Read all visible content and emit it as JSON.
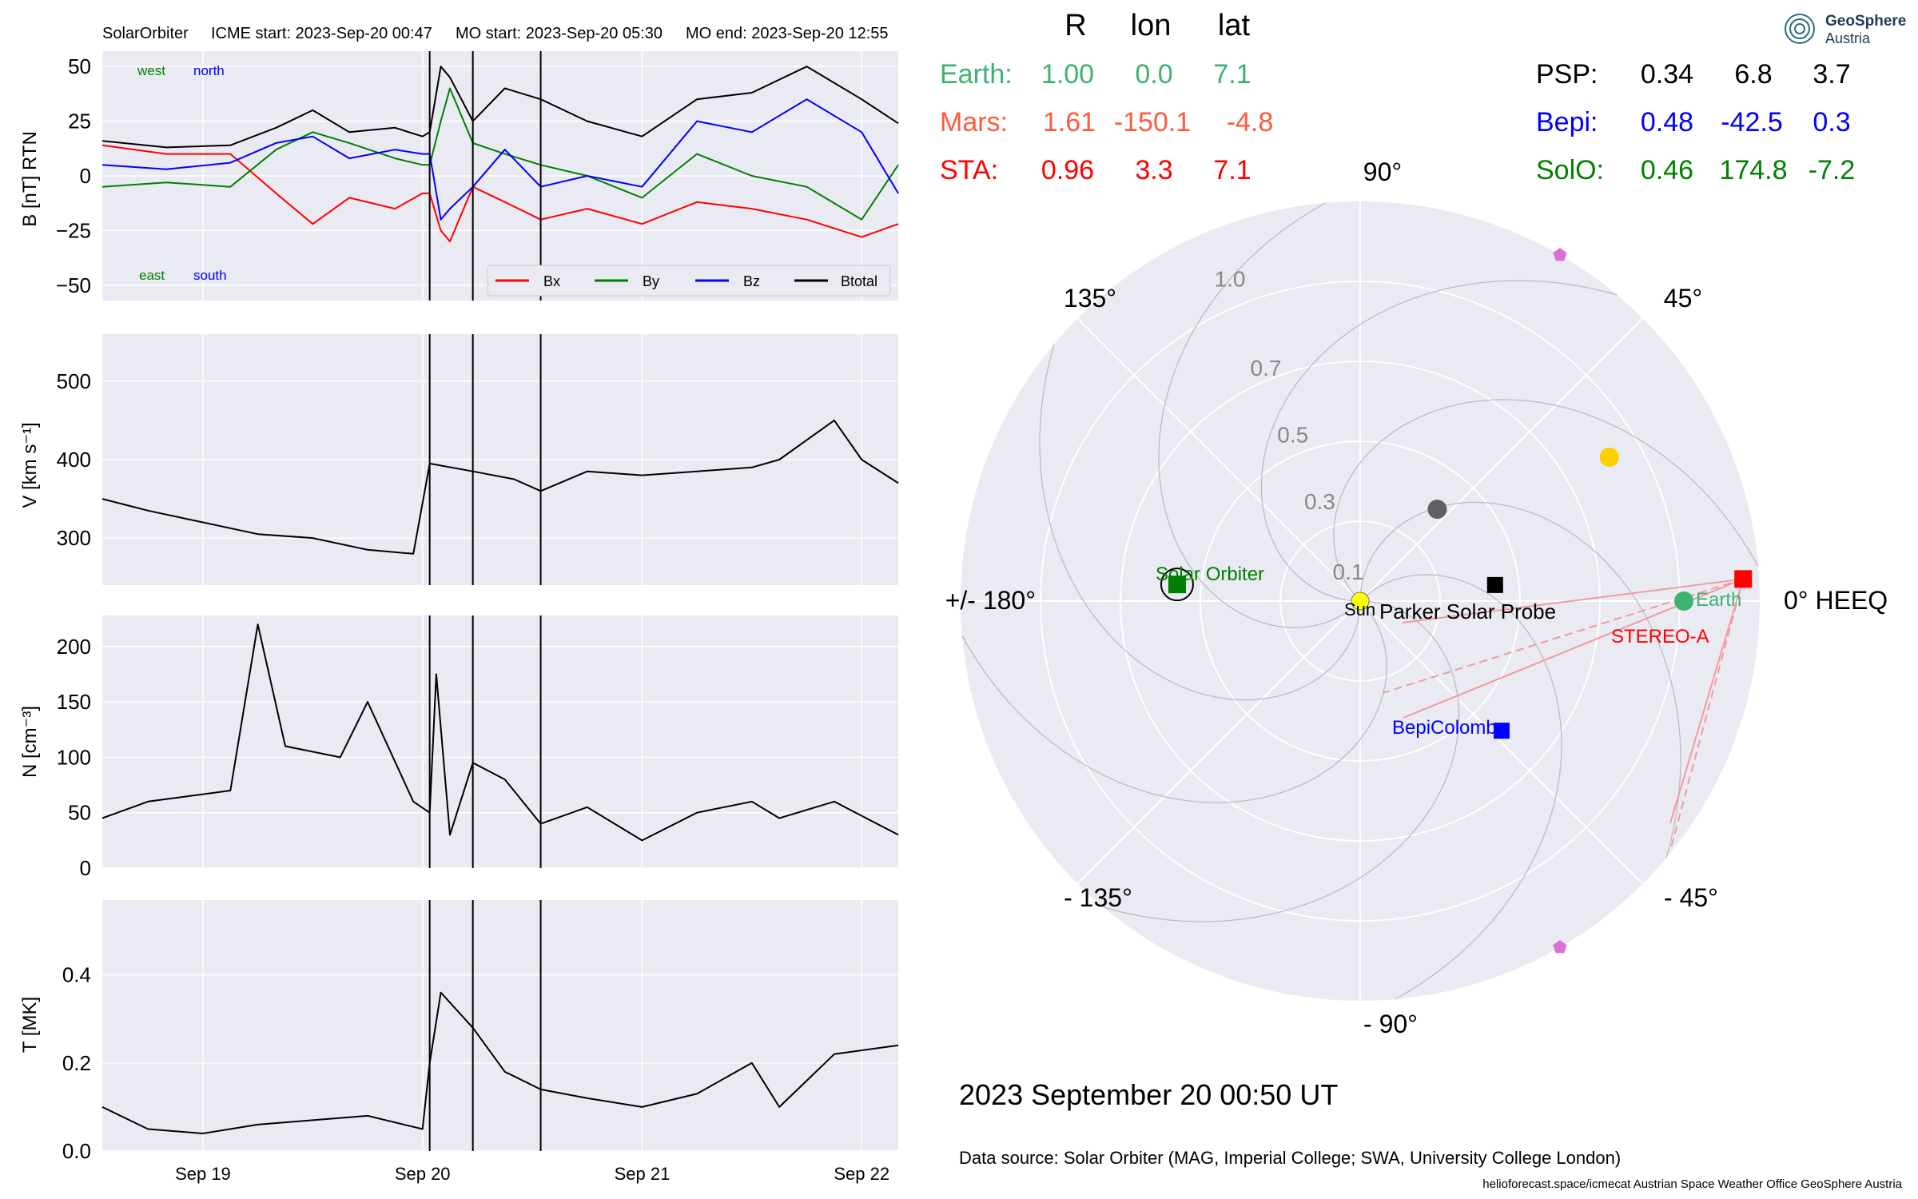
{
  "header": {
    "spacecraft": "SolarOrbiter",
    "icme_start": "ICME start: 2023-Sep-20 00:47",
    "mo_start": "MO start: 2023-Sep-20 05:30",
    "mo_end": "MO end: 2023-Sep-20 12:55"
  },
  "colors": {
    "panel_bg": "#eaeaf2",
    "grid": "#ffffff",
    "bx": "#ff0000",
    "by": "#008000",
    "bz": "#0000ff",
    "btotal": "#000000",
    "earth": "#3cb371",
    "mars": "#ff5a3c",
    "sta": "#ff0000",
    "psp": "#000000",
    "bepi": "#0000ff",
    "solo": "#008000",
    "sun": "#ffff00",
    "mercury": "#606060",
    "venus": "#ffd000",
    "l5l4": "#da70d6"
  },
  "time_axis": {
    "start": "2023-09-18T13:00",
    "end": "2023-09-22T04:00",
    "ticks": [
      {
        "t": "2023-09-19T00:00",
        "label": "Sep 19"
      },
      {
        "t": "2023-09-20T00:00",
        "label": "Sep 20"
      },
      {
        "t": "2023-09-21T00:00",
        "label": "Sep 21"
      },
      {
        "t": "2023-09-22T00:00",
        "label": "Sep 22"
      }
    ],
    "event_lines": [
      "2023-09-20T00:47",
      "2023-09-20T05:30",
      "2023-09-20T12:55"
    ]
  },
  "panels": {
    "b": {
      "ylabel": "B [nT] RTN",
      "ylim": [
        -57,
        57
      ],
      "ticks": [
        50,
        25,
        0,
        -25,
        -50
      ],
      "tick_labels": [
        "50",
        "25",
        "0",
        "−25",
        "−50"
      ],
      "dir_labels": {
        "west": "west",
        "north": "north",
        "east": "east",
        "south": "south"
      },
      "legend": [
        "Bx",
        "By",
        "Bz",
        "Btotal"
      ]
    },
    "v": {
      "ylabel": "V [km s⁻¹]",
      "ylim": [
        240,
        560
      ],
      "ticks": [
        500,
        400,
        300
      ],
      "tick_labels": [
        "500",
        "400",
        "300"
      ]
    },
    "n": {
      "ylabel": "N [cm⁻³]",
      "ylim": [
        0,
        228
      ],
      "ticks": [
        200,
        150,
        100,
        50,
        0
      ],
      "tick_labels": [
        "200",
        "150",
        "100",
        "50",
        "0"
      ]
    },
    "t": {
      "ylabel": "T [MK]",
      "ylim": [
        0,
        0.57
      ],
      "ticks": [
        0.4,
        0.2,
        0.0
      ],
      "tick_labels": [
        "0.4",
        "0.2",
        "0.0"
      ]
    }
  },
  "chart_data": [
    {
      "type": "line",
      "name": "magnetic field RTN",
      "x": [
        "2023-09-18T13:00",
        "2023-09-18T20:00",
        "2023-09-19T03:00",
        "2023-09-19T08:00",
        "2023-09-19T12:00",
        "2023-09-19T16:00",
        "2023-09-19T21:00",
        "2023-09-20T00:00",
        "2023-09-20T00:47",
        "2023-09-20T02:00",
        "2023-09-20T03:00",
        "2023-09-20T05:30",
        "2023-09-20T09:00",
        "2023-09-20T12:55",
        "2023-09-20T18:00",
        "2023-09-21T00:00",
        "2023-09-21T06:00",
        "2023-09-21T12:00",
        "2023-09-21T18:00",
        "2023-09-22T00:00",
        "2023-09-22T04:00"
      ],
      "series": [
        {
          "name": "Bx",
          "values": [
            14,
            10,
            10,
            -8,
            -22,
            -10,
            -15,
            -8,
            -8,
            -25,
            -30,
            -5,
            -12,
            -20,
            -15,
            -22,
            -12,
            -15,
            -20,
            -28,
            -22
          ]
        },
        {
          "name": "By",
          "values": [
            -5,
            -3,
            -5,
            12,
            20,
            15,
            8,
            5,
            5,
            25,
            40,
            15,
            10,
            5,
            0,
            -10,
            10,
            0,
            -5,
            -20,
            5
          ]
        },
        {
          "name": "Bz",
          "values": [
            5,
            3,
            6,
            15,
            18,
            8,
            12,
            10,
            10,
            -20,
            -15,
            -5,
            12,
            -5,
            0,
            -5,
            25,
            20,
            35,
            20,
            -8
          ]
        },
        {
          "name": "Btotal",
          "values": [
            16,
            13,
            14,
            22,
            30,
            20,
            22,
            18,
            20,
            50,
            45,
            25,
            40,
            35,
            25,
            18,
            35,
            38,
            50,
            35,
            24
          ]
        }
      ]
    },
    {
      "type": "line",
      "name": "proton speed",
      "x": [
        "2023-09-18T13:00",
        "2023-09-18T18:00",
        "2023-09-19T00:00",
        "2023-09-19T06:00",
        "2023-09-19T12:00",
        "2023-09-19T18:00",
        "2023-09-19T23:00",
        "2023-09-20T00:47",
        "2023-09-20T05:30",
        "2023-09-20T10:00",
        "2023-09-20T12:55",
        "2023-09-20T18:00",
        "2023-09-21T00:00",
        "2023-09-21T06:00",
        "2023-09-21T12:00",
        "2023-09-21T15:00",
        "2023-09-21T21:00",
        "2023-09-22T00:00",
        "2023-09-22T04:00"
      ],
      "series": [
        {
          "name": "V",
          "values": [
            350,
            335,
            320,
            305,
            300,
            285,
            280,
            395,
            385,
            375,
            360,
            385,
            380,
            385,
            390,
            400,
            450,
            400,
            370
          ]
        }
      ]
    },
    {
      "type": "line",
      "name": "proton density",
      "x": [
        "2023-09-18T13:00",
        "2023-09-18T18:00",
        "2023-09-19T03:00",
        "2023-09-19T06:00",
        "2023-09-19T09:00",
        "2023-09-19T15:00",
        "2023-09-19T18:00",
        "2023-09-19T23:00",
        "2023-09-20T00:47",
        "2023-09-20T01:30",
        "2023-09-20T03:00",
        "2023-09-20T05:30",
        "2023-09-20T09:00",
        "2023-09-20T12:55",
        "2023-09-20T18:00",
        "2023-09-21T00:00",
        "2023-09-21T06:00",
        "2023-09-21T12:00",
        "2023-09-21T15:00",
        "2023-09-21T21:00",
        "2023-09-22T04:00"
      ],
      "series": [
        {
          "name": "N",
          "values": [
            45,
            60,
            70,
            220,
            110,
            100,
            150,
            60,
            50,
            175,
            30,
            95,
            80,
            40,
            55,
            25,
            50,
            60,
            45,
            60,
            30
          ]
        }
      ]
    },
    {
      "type": "line",
      "name": "proton temperature",
      "x": [
        "2023-09-18T13:00",
        "2023-09-18T18:00",
        "2023-09-19T00:00",
        "2023-09-19T06:00",
        "2023-09-19T12:00",
        "2023-09-19T18:00",
        "2023-09-20T00:00",
        "2023-09-20T00:47",
        "2023-09-20T02:00",
        "2023-09-20T05:30",
        "2023-09-20T09:00",
        "2023-09-20T12:55",
        "2023-09-20T18:00",
        "2023-09-21T00:00",
        "2023-09-21T06:00",
        "2023-09-21T12:00",
        "2023-09-21T15:00",
        "2023-09-21T21:00",
        "2023-09-22T04:00"
      ],
      "series": [
        {
          "name": "T",
          "values": [
            0.1,
            0.05,
            0.04,
            0.06,
            0.07,
            0.08,
            0.05,
            0.2,
            0.36,
            0.28,
            0.18,
            0.14,
            0.12,
            0.1,
            0.13,
            0.2,
            0.1,
            0.22,
            0.24
          ]
        }
      ]
    },
    {
      "type": "scatter",
      "name": "polar position plot",
      "r_ticks": [
        "0.1",
        "0.3",
        "0.5",
        "0.7",
        "1.0"
      ],
      "points": [
        {
          "name": "Sun",
          "r": 0,
          "lon": 0
        },
        {
          "name": "Earth",
          "r": 1.0,
          "lon": 0.0,
          "lat": 7.1
        },
        {
          "name": "STEREO-A",
          "r": 0.96,
          "lon": 3.3,
          "lat": 7.1
        },
        {
          "name": "Solar Orbiter",
          "r": 0.46,
          "lon": 174.8,
          "lat": -7.2
        },
        {
          "name": "BepiColombo",
          "r": 0.48,
          "lon": -42.5,
          "lat": 0.3
        },
        {
          "name": "Parker Solar Probe",
          "r": 0.34,
          "lon": 6.8,
          "lat": 3.7
        },
        {
          "name": "Mercury",
          "r": 0.3,
          "lon": 50
        },
        {
          "name": "Venus",
          "r": 0.72,
          "lon": 30
        },
        {
          "name": "L4",
          "r": 1.0,
          "lon": 60
        },
        {
          "name": "L5",
          "r": 1.0,
          "lon": -60
        }
      ]
    }
  ],
  "polar": {
    "angle_labels": {
      "a90": "90°",
      "a45": "45°",
      "a0": "0° HEEQ",
      "am45": "- 45°",
      "am90": "- 90°",
      "am135": "- 135°",
      "a180": "+/- 180°",
      "a135": "135°"
    },
    "body_labels": {
      "sun": "Sun",
      "psp": "Parker Solar Probe",
      "solo": "Solar Orbiter",
      "bepi": "BepiColombo",
      "sta": "STEREO-A",
      "earth": "Earth"
    }
  },
  "table": {
    "headers": [
      "R",
      "lon",
      "lat"
    ],
    "rows": [
      {
        "name": "Earth:",
        "r": "1.00",
        "lon": "0.0",
        "lat": "7.1"
      },
      {
        "name": "Mars:",
        "r": "1.61",
        "lon": "-150.1",
        "lat": "-4.8"
      },
      {
        "name": "STA:",
        "r": "0.96",
        "lon": "3.3",
        "lat": "7.1"
      },
      {
        "name": "PSP:",
        "r": "0.34",
        "lon": "6.8",
        "lat": "3.7"
      },
      {
        "name": "Bepi:",
        "r": "0.48",
        "lon": "-42.5",
        "lat": "0.3"
      },
      {
        "name": "SolO:",
        "r": "0.46",
        "lon": "174.8",
        "lat": "-7.2"
      }
    ]
  },
  "footer": {
    "date": "2023 September 20  00:50 UT",
    "source": "Data source: Solar Orbiter (MAG, Imperial College; SWA, University College London)",
    "credits": "helioforecast.space/icmecat   Austrian Space Weather Office   GeoSphere Austria"
  },
  "logo": {
    "line1": "GeoSphere",
    "line2": "Austria"
  }
}
